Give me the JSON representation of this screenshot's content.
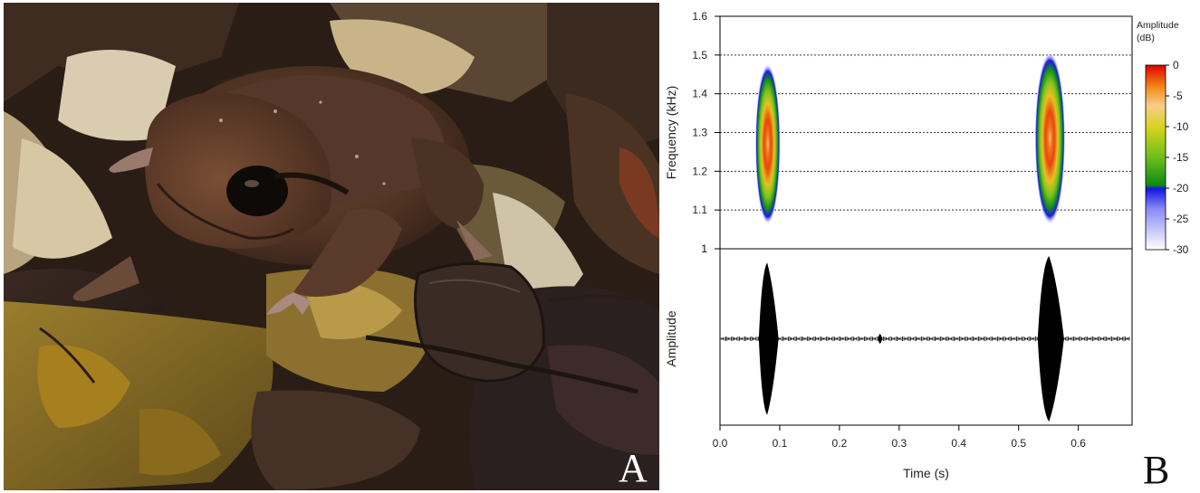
{
  "panels": {
    "a_label": "A",
    "b_label": "B"
  },
  "photo": {
    "subject": "frog-on-leaf-litter"
  },
  "chart_data": [
    {
      "type": "heatmap",
      "subtype": "spectrogram",
      "xlabel": "",
      "ylabel": "Frequency (kHz)",
      "xlim": [
        0.0,
        0.69
      ],
      "ylim": [
        1.0,
        1.6
      ],
      "yticks": [
        "1",
        "1.1",
        "1.2",
        "1.3",
        "1.4",
        "1.5",
        "1.6"
      ],
      "gridlines_y": [
        1.1,
        1.2,
        1.3,
        1.4,
        1.5
      ],
      "grid": "dotted horizontal",
      "notes": [
        {
          "t_start": 0.065,
          "t_end": 0.095,
          "f_low": 1.08,
          "f_high": 1.46,
          "f_peak": 1.28,
          "peak_db": -3
        },
        {
          "t_start": 0.533,
          "t_end": 0.572,
          "f_low": 1.08,
          "f_high": 1.49,
          "f_peak": 1.29,
          "peak_db": -3
        }
      ],
      "colorbar": {
        "title_line1": "Amplitude",
        "title_line2": "(dB)",
        "ticks": [
          "0",
          "-5",
          "-10",
          "-15",
          "-20",
          "-25",
          "-30"
        ],
        "range": [
          -30,
          0
        ],
        "colors": [
          "#ffffff",
          "#4a4af2",
          "#1a1ae0",
          "#12901a",
          "#7fc21e",
          "#d9cf1e",
          "#f8d08a",
          "#f58a18",
          "#e83010",
          "#e20000"
        ]
      }
    },
    {
      "type": "line",
      "subtype": "oscillogram",
      "xlabel": "Time (s)",
      "ylabel": "Amplitude",
      "xlim": [
        0.0,
        0.69
      ],
      "xticks": [
        "0.0",
        "0.1",
        "0.2",
        "0.3",
        "0.4",
        "0.5",
        "0.6"
      ],
      "ylim": [
        -1,
        1
      ],
      "yticks": [
        "1"
      ],
      "pulses": [
        {
          "t_start": 0.065,
          "t_end": 0.098,
          "t_peak": 0.079,
          "peak_amplitude": 0.92
        },
        {
          "t_start": 0.265,
          "t_end": 0.272,
          "t_peak": 0.268,
          "peak_amplitude": 0.06
        },
        {
          "t_start": 0.532,
          "t_end": 0.576,
          "t_peak": 0.551,
          "peak_amplitude": 1.0
        }
      ],
      "baseline_color": "#888888",
      "waveform_color": "#000000"
    }
  ],
  "colors": {
    "axis": "#000000",
    "grid": "#333333"
  }
}
